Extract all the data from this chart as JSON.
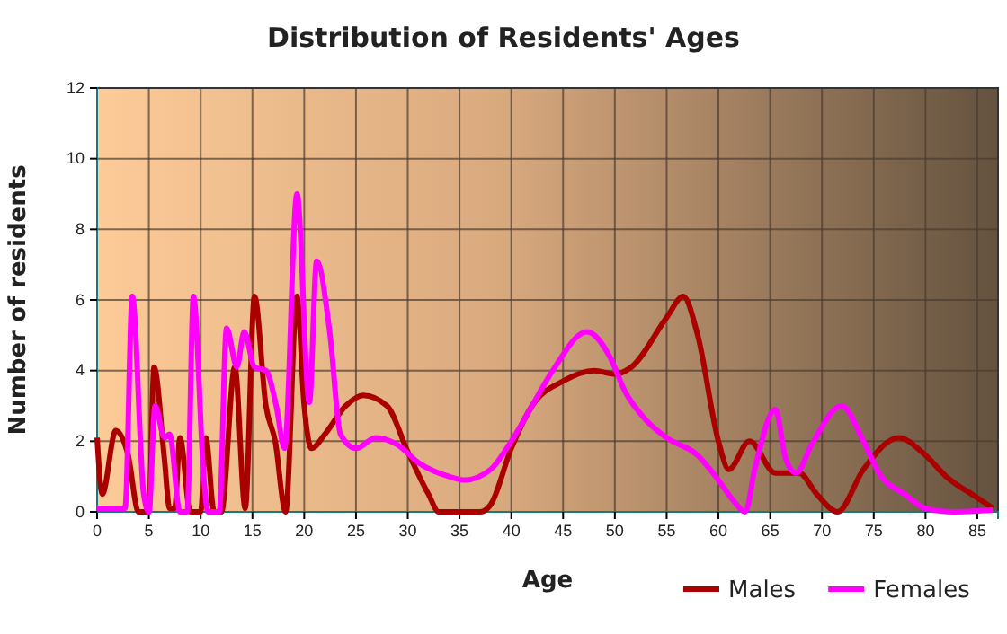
{
  "chart_data": {
    "type": "line",
    "title": "Distribution of Residents' Ages",
    "xlabel": "Age",
    "ylabel": "Number of residents",
    "xlim": [
      0,
      87
    ],
    "xticks": [
      0,
      5,
      10,
      15,
      20,
      25,
      30,
      35,
      40,
      45,
      50,
      55,
      60,
      65,
      70,
      75,
      80,
      85
    ],
    "ylim": [
      0,
      12
    ],
    "yticks": [
      0,
      2,
      4,
      6,
      8,
      10,
      12
    ],
    "grid": true,
    "legend": "bottom",
    "marker": "none",
    "line_style": "solid",
    "series": [
      {
        "name": "Males",
        "color": "#aa0000",
        "x": [
          0,
          0.5,
          1.8,
          3,
          4,
          5,
          5.5,
          6.5,
          7,
          7.5,
          8,
          9,
          10,
          10.5,
          11.3,
          12,
          13.3,
          14.3,
          15.2,
          16.3,
          17.2,
          18.2,
          19.3,
          20,
          20.7,
          22,
          24,
          25.7,
          28,
          30,
          32,
          33,
          36,
          37,
          38,
          40,
          42,
          45,
          48,
          50,
          51.6,
          55,
          56.6,
          58,
          60,
          61,
          63,
          65.5,
          67.8,
          69.5,
          71.5,
          74,
          77.4,
          80,
          82,
          85,
          86.5
        ],
        "values": [
          2.1,
          0.5,
          2.3,
          1.6,
          0,
          0,
          4.1,
          1.5,
          0.1,
          0.1,
          2.1,
          0,
          0,
          2.1,
          0,
          0,
          4.1,
          0.1,
          6.1,
          3,
          2,
          0,
          6.1,
          3,
          1.8,
          2.2,
          3,
          3.3,
          3,
          1.7,
          0.5,
          0,
          0,
          0,
          0.2,
          1.8,
          3,
          3.7,
          4,
          3.9,
          4.1,
          5.5,
          6.1,
          5,
          2,
          1.2,
          2,
          1.1,
          1.1,
          0.5,
          0,
          1.2,
          2.1,
          1.6,
          1,
          0.4,
          0.1
        ]
      },
      {
        "name": "Females",
        "color": "#ff00ff",
        "x": [
          0,
          2,
          2.7,
          3.4,
          4.5,
          5,
          5.6,
          6.5,
          7,
          8,
          8.7,
          9.3,
          10.3,
          10.7,
          11.8,
          12.5,
          13.5,
          14.2,
          15.2,
          16.3,
          17.3,
          18.1,
          19.3,
          20.5,
          21.2,
          22.5,
          23.5,
          25,
          26.9,
          29,
          31,
          34,
          35.5,
          38,
          40,
          42,
          44,
          47.3,
          49.5,
          51,
          53,
          55,
          58,
          60,
          61.5,
          62.6,
          63.5,
          65.5,
          66.5,
          67.5,
          69,
          71.9,
          74,
          75.5,
          78,
          80,
          82.8,
          86.5
        ],
        "values": [
          0.1,
          0.1,
          0.1,
          6.1,
          0.5,
          0,
          3,
          2.1,
          2.2,
          0,
          0,
          6.1,
          1,
          0,
          0,
          5.2,
          4.1,
          5.1,
          4.1,
          4,
          3,
          1.8,
          9,
          3.1,
          7.1,
          5,
          2.2,
          1.8,
          2.1,
          1.9,
          1.4,
          1,
          0.9,
          1.2,
          2,
          3,
          4,
          5.1,
          4.4,
          3.4,
          2.6,
          2.1,
          1.6,
          0.9,
          0.3,
          0,
          1.2,
          2.9,
          1.5,
          1.1,
          1.9,
          3,
          2,
          1.1,
          0.5,
          0.1,
          0,
          0.05
        ]
      }
    ]
  }
}
